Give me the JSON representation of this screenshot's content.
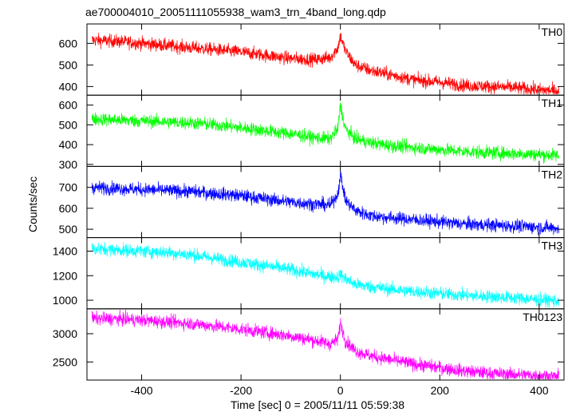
{
  "chart_data": {
    "type": "line",
    "title": "ae700004010_20051111055938_wam3_trn_4band_long.qdp",
    "xlabel": "Time [sec] 0 = 2005/11/11 05:59:38",
    "ylabel": "Counts/sec",
    "xlim": [
      -510,
      450
    ],
    "xticks": [
      -400,
      -200,
      0,
      200,
      400
    ],
    "grid": false,
    "panels": [
      {
        "name": "TH0",
        "color": "#ff0000",
        "ylim": [
          360,
          690
        ],
        "yticks": [
          400,
          500,
          600
        ],
        "x": [
          -500,
          -450,
          -400,
          -350,
          -300,
          -250,
          -200,
          -150,
          -100,
          -50,
          -20,
          -5,
          0,
          10,
          30,
          60,
          100,
          150,
          200,
          250,
          300,
          350,
          400,
          440
        ],
        "y": [
          615,
          610,
          600,
          590,
          580,
          570,
          560,
          545,
          530,
          525,
          535,
          580,
          635,
          565,
          500,
          475,
          455,
          430,
          420,
          405,
          400,
          395,
          385,
          380
        ]
      },
      {
        "name": "TH1",
        "color": "#00ff00",
        "ylim": [
          290,
          650
        ],
        "yticks": [
          300,
          400,
          500,
          600
        ],
        "x": [
          -500,
          -450,
          -400,
          -350,
          -300,
          -250,
          -200,
          -150,
          -100,
          -50,
          -20,
          -5,
          0,
          10,
          30,
          60,
          100,
          150,
          200,
          250,
          300,
          350,
          400,
          440
        ],
        "y": [
          530,
          525,
          520,
          515,
          510,
          500,
          485,
          470,
          455,
          435,
          430,
          480,
          600,
          480,
          430,
          410,
          395,
          385,
          375,
          365,
          360,
          355,
          350,
          345
        ]
      },
      {
        "name": "TH2",
        "color": "#0000ff",
        "ylim": [
          460,
          800
        ],
        "yticks": [
          500,
          600,
          700
        ],
        "x": [
          -500,
          -450,
          -400,
          -350,
          -300,
          -250,
          -200,
          -150,
          -100,
          -50,
          -20,
          -5,
          0,
          10,
          30,
          60,
          100,
          150,
          200,
          250,
          300,
          350,
          400,
          440
        ],
        "y": [
          700,
          695,
          690,
          685,
          680,
          670,
          660,
          645,
          630,
          620,
          615,
          670,
          760,
          640,
          590,
          565,
          555,
          545,
          535,
          525,
          520,
          515,
          510,
          505
        ]
      },
      {
        "name": "TH3",
        "color": "#00ffff",
        "ylim": [
          930,
          1510
        ],
        "yticks": [
          1000,
          1200,
          1400
        ],
        "x": [
          -500,
          -450,
          -400,
          -350,
          -300,
          -250,
          -200,
          -150,
          -100,
          -50,
          -20,
          -5,
          0,
          10,
          30,
          60,
          100,
          150,
          200,
          250,
          300,
          350,
          400,
          440
        ],
        "y": [
          1420,
          1410,
          1400,
          1390,
          1370,
          1340,
          1310,
          1280,
          1250,
          1210,
          1190,
          1190,
          1210,
          1175,
          1130,
          1110,
          1090,
          1070,
          1055,
          1040,
          1030,
          1020,
          1005,
          995
        ]
      },
      {
        "name": "TH0123",
        "color": "#ff00ff",
        "ylim": [
          2180,
          3440
        ],
        "yticks": [
          2500,
          3000
        ],
        "x": [
          -500,
          -450,
          -400,
          -350,
          -300,
          -250,
          -200,
          -150,
          -100,
          -50,
          -20,
          -5,
          0,
          10,
          30,
          60,
          100,
          150,
          200,
          250,
          300,
          350,
          400,
          440
        ],
        "y": [
          3270,
          3260,
          3240,
          3210,
          3180,
          3130,
          3080,
          3020,
          2960,
          2880,
          2820,
          2900,
          3200,
          2870,
          2700,
          2610,
          2540,
          2460,
          2400,
          2340,
          2300,
          2280,
          2260,
          2240
        ]
      }
    ]
  }
}
